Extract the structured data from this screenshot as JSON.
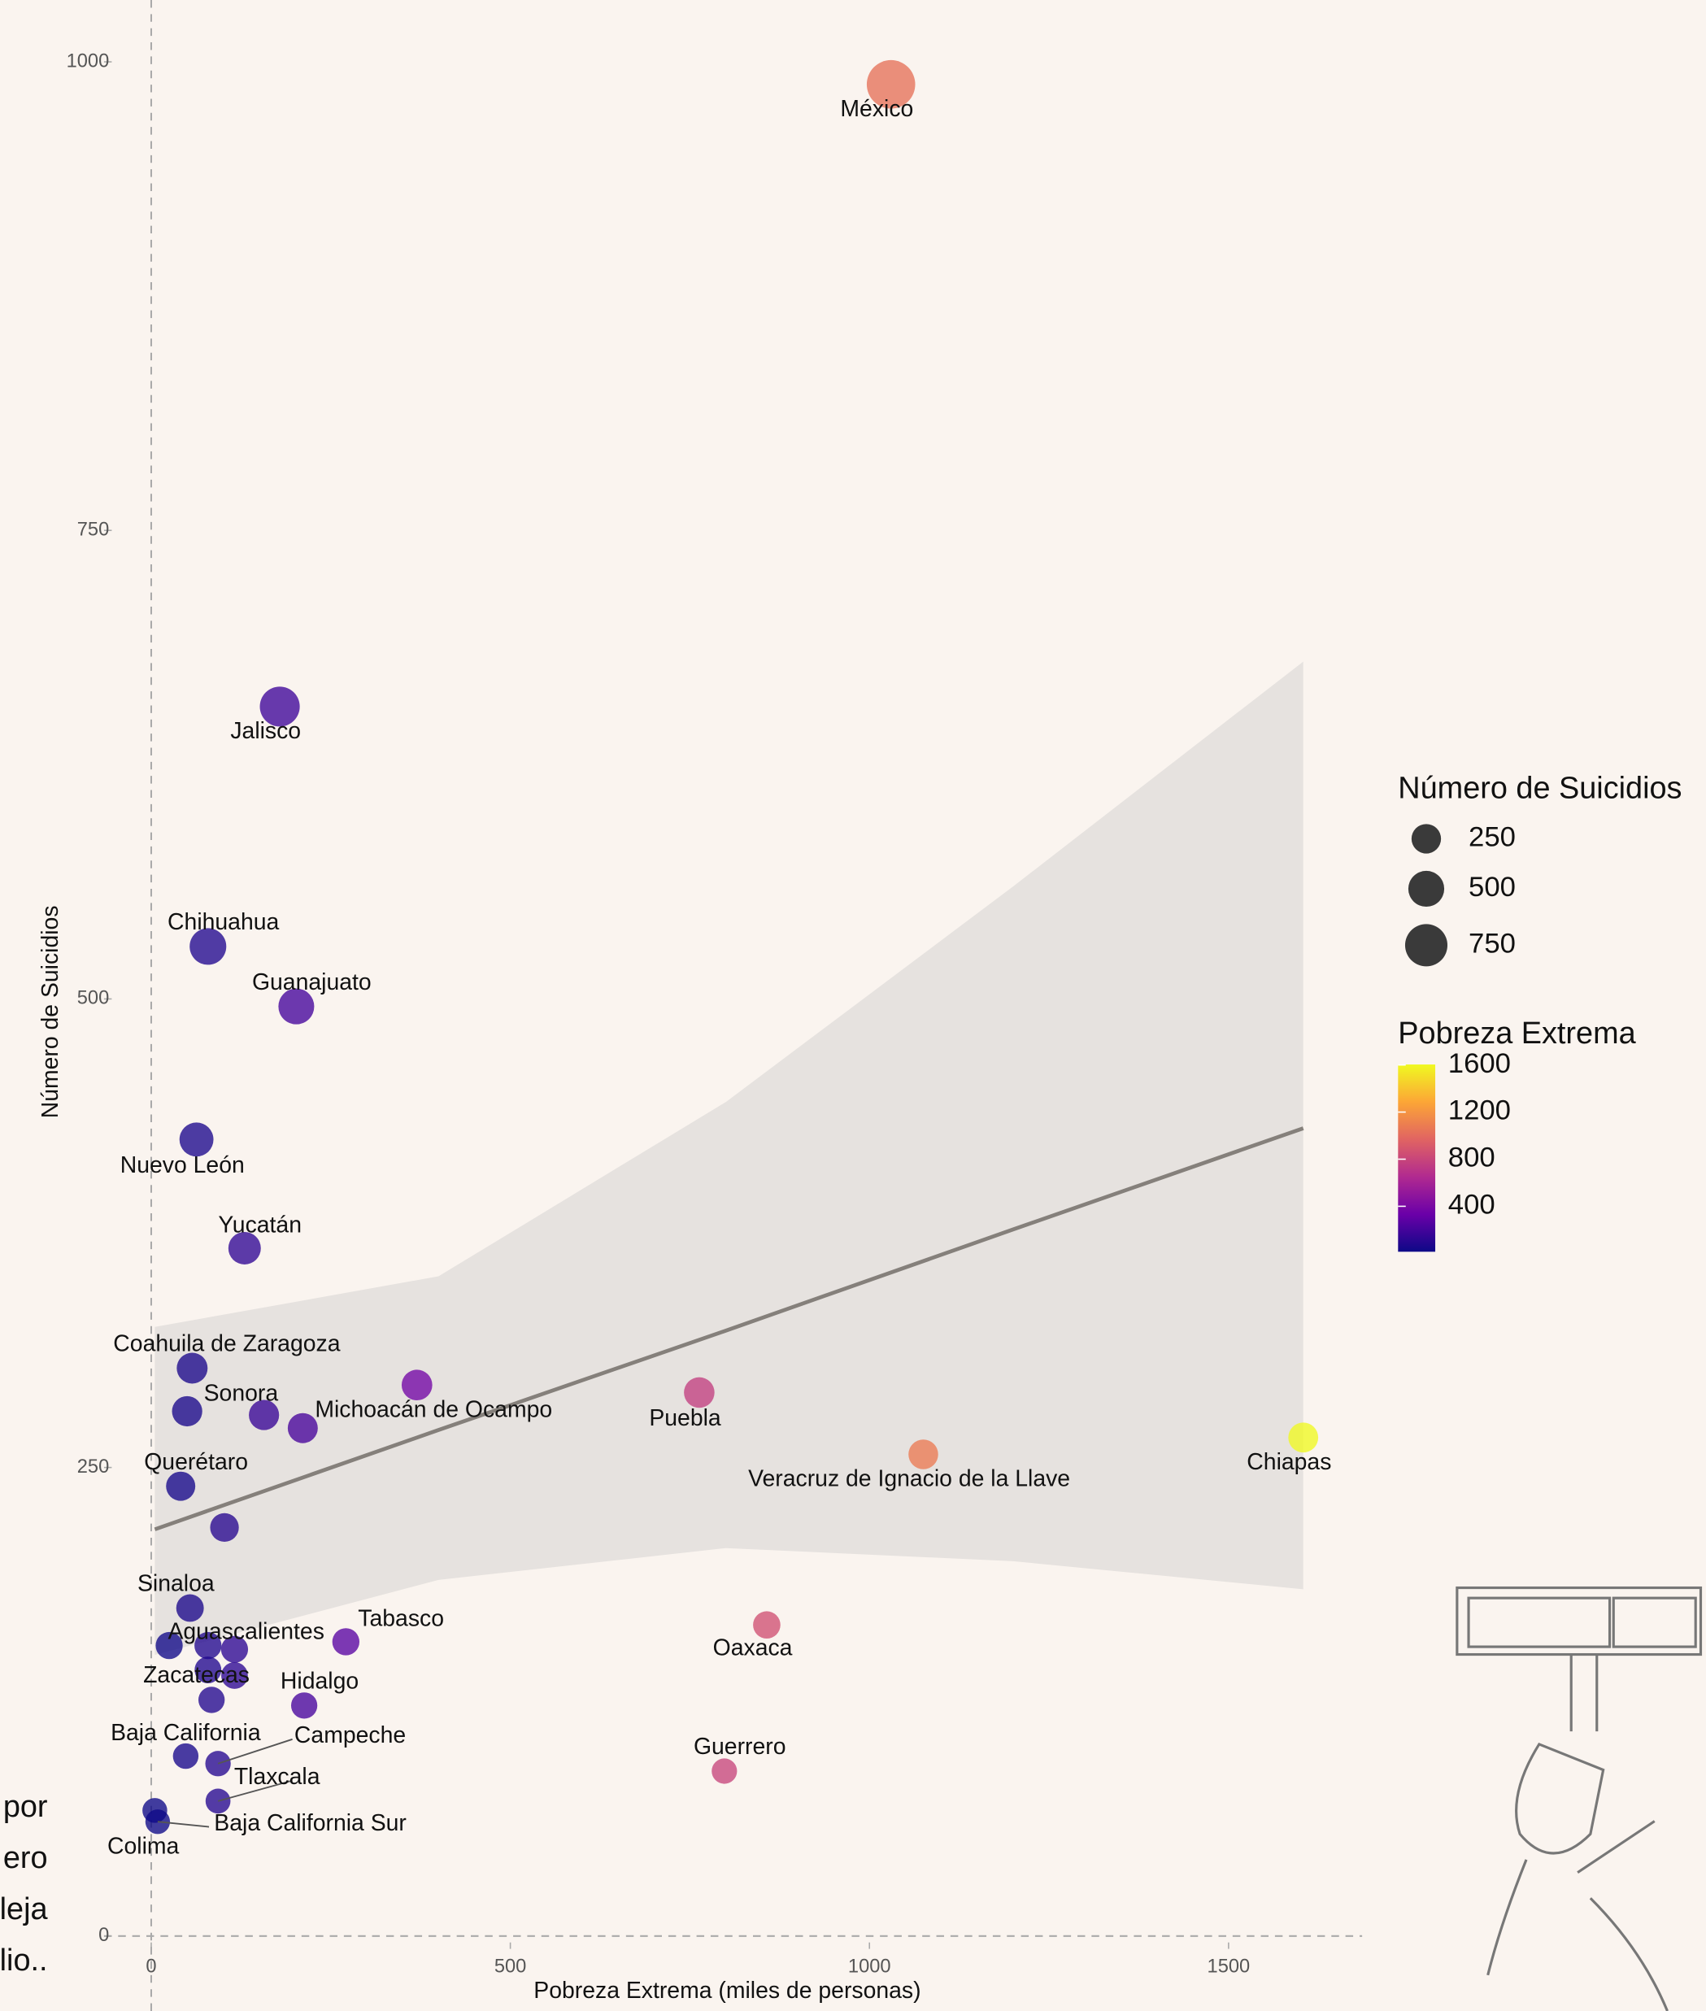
{
  "chart_data": {
    "type": "scatter",
    "x_label": "Pobreza Extrema (miles de personas)",
    "y_label": "Número de Suicidios",
    "categories": [
      "México",
      "Jalisco",
      "Chihuahua",
      "Guanajuato",
      "Nuevo León",
      "Yucatán",
      "Coahuila de Zaragoza",
      "Sonora",
      null,
      "Michoacán de Ocampo",
      null,
      "Puebla",
      "Veracruz de Ignacio de la Llave",
      "Chiapas",
      "Querétaro",
      null,
      "Sinaloa",
      "Aguascalientes",
      null,
      null,
      "Tabasco",
      "Oaxaca",
      "Zacatecas",
      null,
      null,
      "Hidalgo",
      "Baja California",
      "Campeche",
      "Guerrero",
      "Tlaxcala",
      "Colima",
      "Baja California Sur"
    ],
    "x": [
      1030,
      179,
      79,
      202,
      63,
      130,
      57,
      50,
      157,
      370,
      211,
      763,
      1075,
      1604,
      41,
      102,
      54,
      25,
      79,
      116,
      271,
      857,
      79,
      116,
      84,
      213,
      48,
      93,
      798,
      93,
      5,
      9
    ],
    "values": [
      988,
      656,
      528,
      496,
      425,
      367,
      303,
      280,
      278,
      294,
      271,
      290,
      257,
      266,
      240,
      218,
      175,
      155,
      155,
      153,
      157,
      166,
      142,
      139,
      126,
      123,
      96,
      92,
      88,
      72,
      67,
      61
    ],
    "xlim": [
      -30,
      1686
    ],
    "ylim": [
      -40,
      1033
    ],
    "xticks": [
      0,
      500,
      1000,
      1500
    ],
    "yticks": [
      0,
      250,
      500,
      750,
      1000
    ],
    "fit": {
      "color": "#85807b",
      "band_color": "#e6e2df",
      "x": [
        5,
        400,
        800,
        1200,
        1604
      ],
      "y": [
        217,
        270,
        323,
        377,
        431
      ],
      "lower": [
        150,
        190,
        207,
        200,
        185
      ],
      "upper": [
        325,
        352,
        445,
        560,
        680
      ]
    },
    "size_legend": {
      "title": "Número de Suicidios",
      "values": [
        250,
        500,
        750
      ],
      "color": "#3a3a3a"
    },
    "color_legend": {
      "title": "Pobreza Extrema",
      "lim": [
        14,
        1604
      ],
      "ticks": [
        400,
        800,
        1200,
        1600
      ],
      "colors": [
        "#0d0887",
        "#6a00a8",
        "#b12a90",
        "#e16462",
        "#fca636",
        "#f0f921"
      ]
    },
    "side_text": [
      "por",
      "ero",
      "leja",
      "lio.."
    ]
  }
}
